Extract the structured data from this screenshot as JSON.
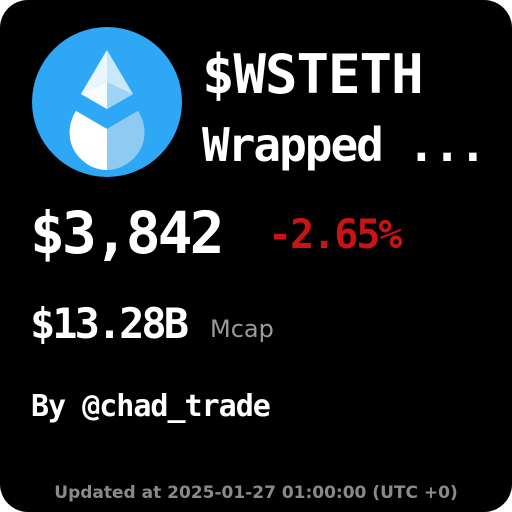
{
  "token": {
    "symbol": "$WSTETH",
    "name": "Wrapped ...",
    "logo_icon": "lido-wsteth-drop-icon",
    "logo_color": "#2ea7f5"
  },
  "price": {
    "value": "$3,842",
    "change": "-2.65%",
    "change_color": "#c81414"
  },
  "market_cap": {
    "value": "$13.28B",
    "label": "Mcap"
  },
  "author": "By @chad_trade",
  "footer": {
    "updated": "Updated at 2025-01-27 01:00:00 (UTC +0)"
  },
  "colors": {
    "background": "#000000",
    "text": "#ffffff",
    "muted": "#9a9a9a"
  }
}
